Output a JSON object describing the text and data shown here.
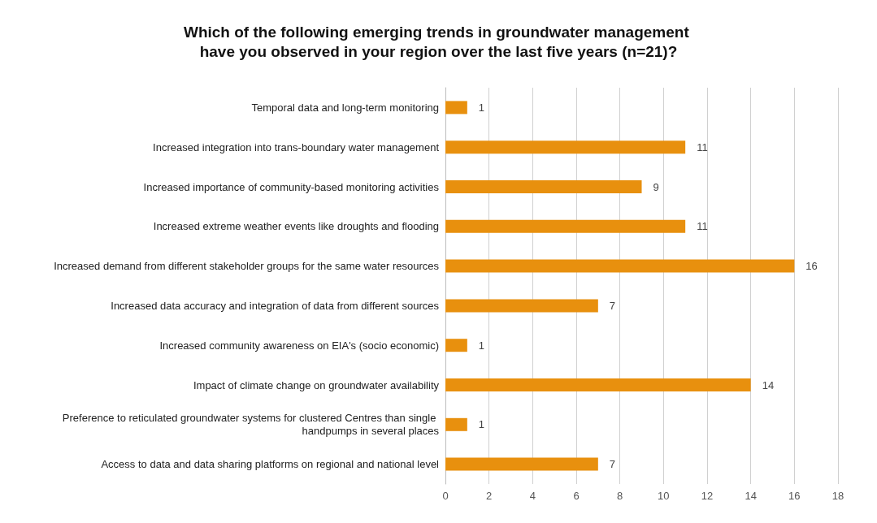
{
  "chart_data": {
    "type": "bar",
    "orientation": "horizontal",
    "title": "Which of the following emerging trends in groundwater management have you observed in your region over the last five years (n=21)?",
    "categories": [
      "Temporal data and long-term monitoring",
      "Increased integration into trans-boundary water management",
      "Increased importance of community-based monitoring activities",
      "Increased extreme weather events like droughts and flooding",
      "Increased demand from different stakeholder groups for the same water resources",
      "Increased data accuracy and integration of data from different sources",
      "Increased community awareness on EIA's (socio economic)",
      "Impact of climate change on groundwater availability",
      "Preference to reticulated groundwater systems for clustered Centres than single handpumps in several places",
      "Access to data and data sharing platforms on regional and national level"
    ],
    "values": [
      1,
      11,
      9,
      11,
      16,
      7,
      1,
      14,
      1,
      7
    ],
    "color": "#e8900e",
    "xlim": [
      0,
      18
    ],
    "xticks": [
      0,
      2,
      4,
      6,
      8,
      10,
      12,
      14,
      16,
      18
    ],
    "grid": "x",
    "data_labels": true
  }
}
